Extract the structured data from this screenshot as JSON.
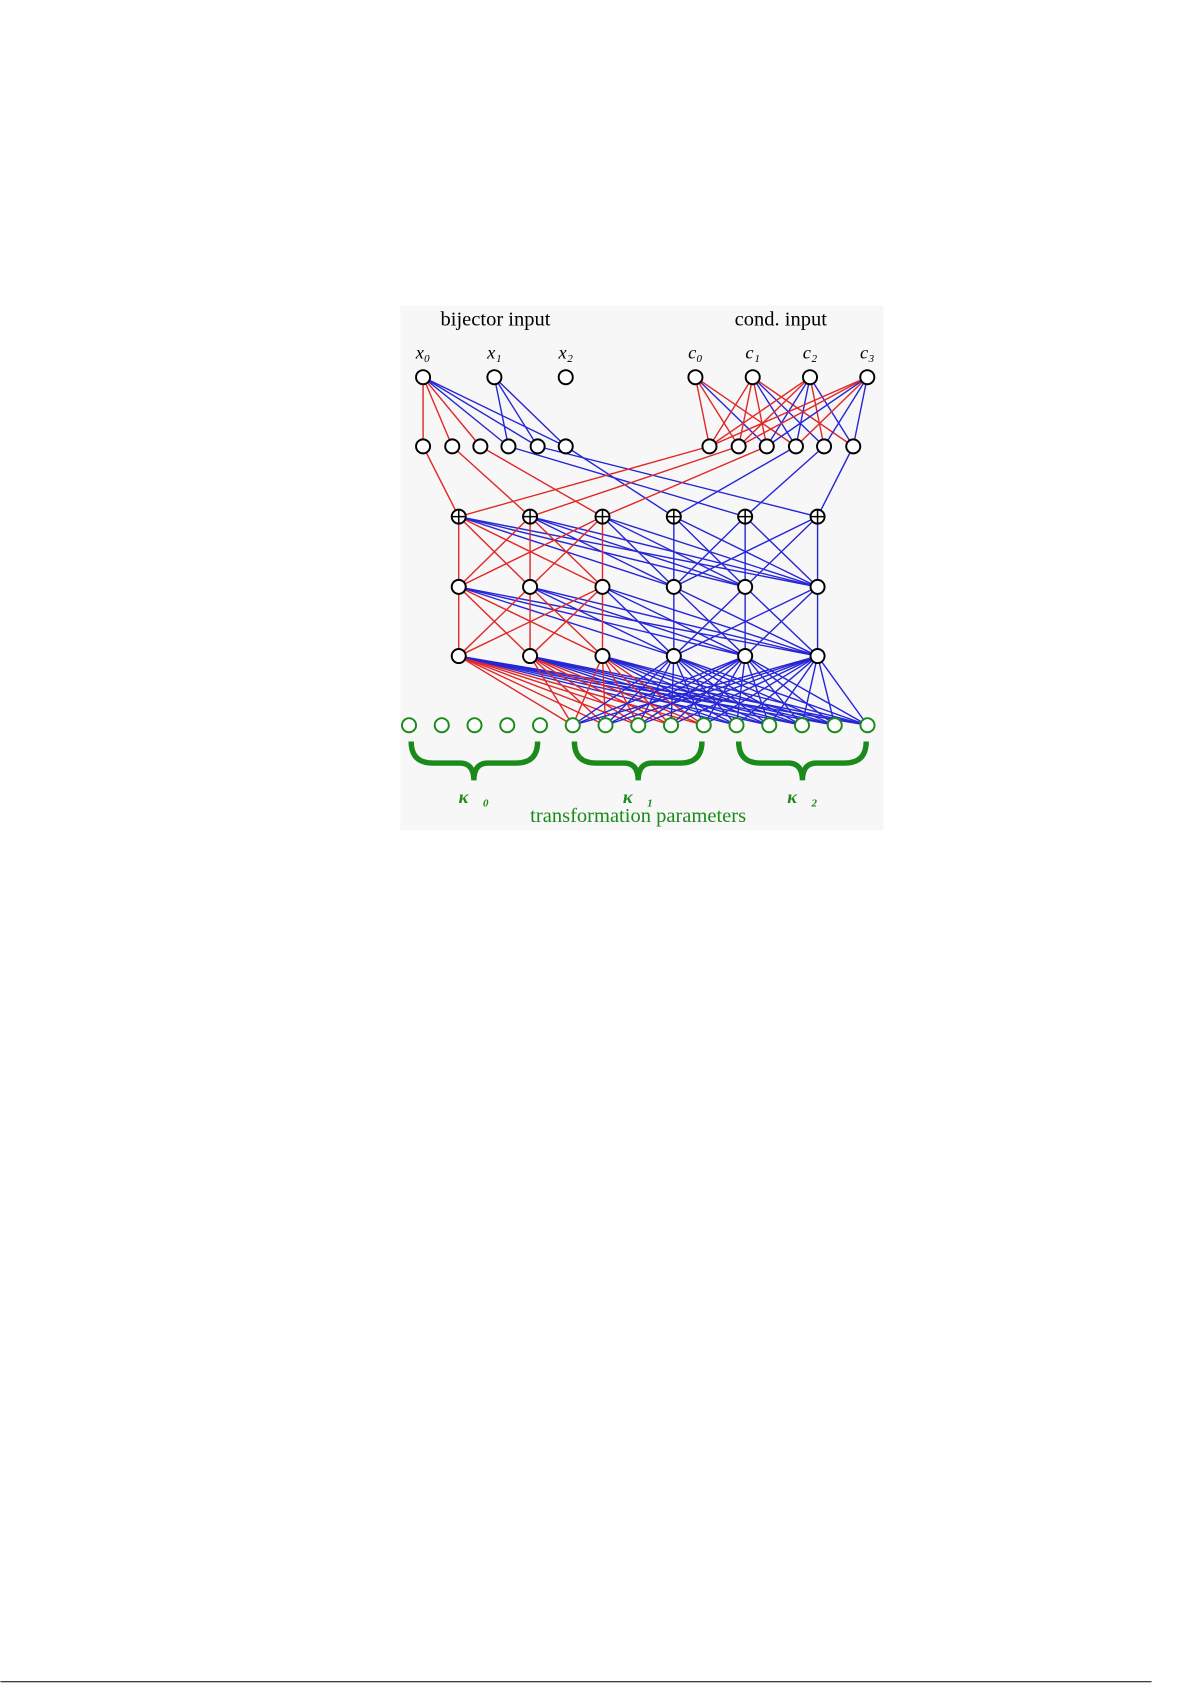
{
  "header": {
    "left": "bijector input",
    "right": "cond. input"
  },
  "inputs": {
    "x": [
      "x₀",
      "x₁",
      "x₂"
    ],
    "c": [
      "c₀",
      "c₁",
      "c₂",
      "c₃"
    ]
  },
  "outputs": {
    "groups": [
      "κ⃗₀",
      "κ⃗₁",
      "κ⃗₂"
    ],
    "caption": "transformation parameters"
  }
}
